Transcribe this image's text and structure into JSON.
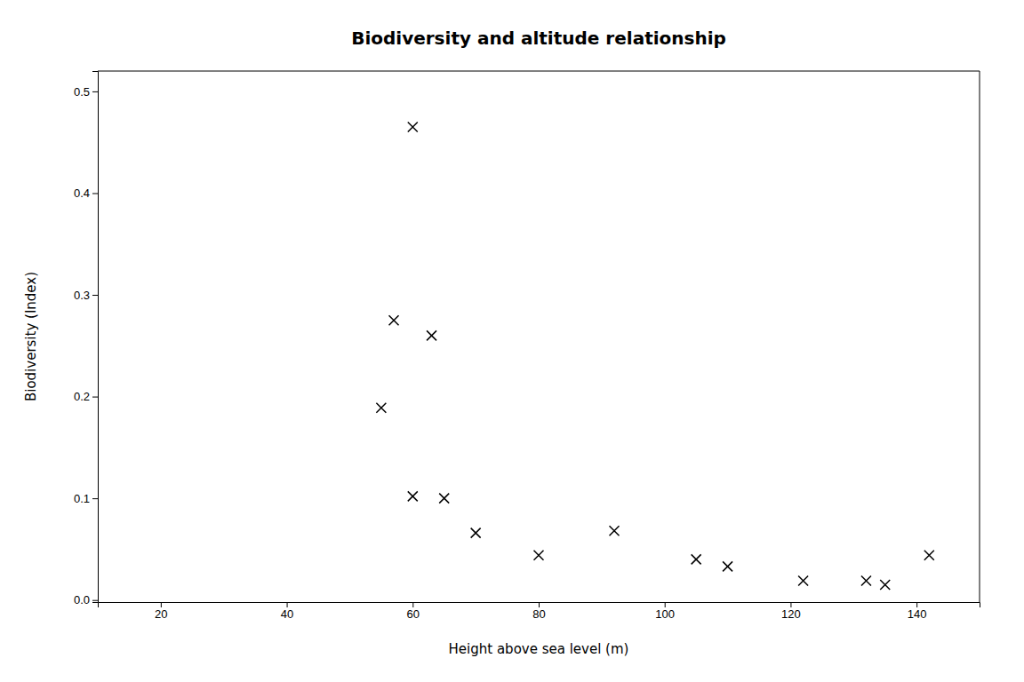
{
  "chart_data": {
    "type": "scatter",
    "title": "Biodiversity and altitude relationship",
    "xlabel": "Height above sea level (m)",
    "ylabel": "Biodiversity (Index)",
    "x": [
      55,
      57,
      60,
      63,
      60,
      65,
      70,
      80,
      92,
      105,
      110,
      122,
      132,
      135,
      142
    ],
    "y": [
      0.189,
      0.275,
      0.465,
      0.26,
      0.102,
      0.1,
      0.066,
      0.044,
      0.068,
      0.04,
      0.033,
      0.019,
      0.019,
      0.015,
      0.044
    ],
    "xlim": [
      10,
      150
    ],
    "ylim": [
      -0.002,
      0.52
    ],
    "xticks": [
      20,
      40,
      60,
      80,
      100,
      120,
      140
    ],
    "yticks": [
      {
        "value": 0.0,
        "label": "0.0"
      },
      0.1,
      0.2,
      0.3,
      0.4,
      0.5
    ],
    "marker": "x",
    "color": "black",
    "grid": false
  }
}
